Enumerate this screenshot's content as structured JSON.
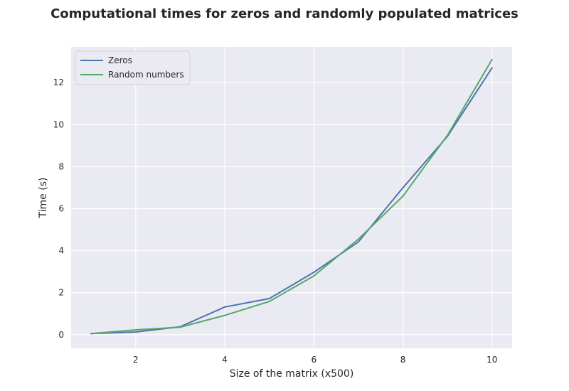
{
  "chart_data": {
    "type": "line",
    "title": "Computational times for zeros and randomly populated matrices",
    "xlabel": "Size of the matrix (x500)",
    "ylabel": "Time (s)",
    "x": [
      1,
      2,
      3,
      4,
      5,
      6,
      7,
      8,
      9,
      10
    ],
    "xlim": [
      0.55,
      10.45
    ],
    "ylim": [
      -0.65,
      13.7
    ],
    "xticks": [
      2,
      4,
      6,
      8,
      10
    ],
    "yticks": [
      0,
      2,
      4,
      6,
      8,
      10,
      12
    ],
    "grid": true,
    "legend_position": "top-left",
    "series": [
      {
        "name": "Zeros",
        "color": "#4c72b0",
        "values": [
          0.05,
          0.13,
          0.38,
          1.32,
          1.72,
          2.97,
          4.42,
          7.0,
          9.45,
          12.7
        ]
      },
      {
        "name": "Random numbers",
        "color": "#55a868",
        "values": [
          0.05,
          0.23,
          0.36,
          0.92,
          1.58,
          2.8,
          4.55,
          6.6,
          9.5,
          13.1
        ]
      }
    ],
    "background": "#eaeaf2",
    "grid_color": "#ffffff"
  }
}
